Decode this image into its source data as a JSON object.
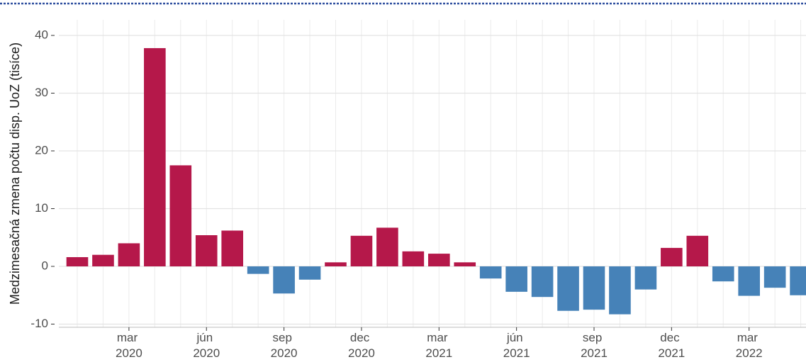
{
  "chart_data": {
    "type": "bar",
    "y_label": "Medzimesačná zmena počtu disp. UoZ (tisíce)",
    "categories": [
      null,
      null,
      "mar 2020",
      null,
      null,
      "jún 2020",
      null,
      null,
      "sep 2020",
      null,
      null,
      "dec 2020",
      null,
      null,
      "mar 2021",
      null,
      null,
      "jún 2021",
      null,
      null,
      "sep 2021",
      null,
      null,
      "dec 2021",
      null,
      null,
      "mar 2022",
      null,
      null
    ],
    "values": [
      1.6,
      2.0,
      4.0,
      37.8,
      17.5,
      5.4,
      6.2,
      -1.3,
      -4.7,
      -2.3,
      0.7,
      5.3,
      6.7,
      2.6,
      2.2,
      0.7,
      -2.1,
      -4.4,
      -5.3,
      -7.7,
      -7.5,
      -8.3,
      -4.0,
      3.2,
      5.3,
      -2.6,
      -5.1,
      -3.7,
      -5.0
    ],
    "positive_color": "#b5184a",
    "negative_color": "#4682b8",
    "ylim": [
      -10.55,
      42.7
    ],
    "yticks": [
      -10,
      0,
      10,
      20,
      30,
      40
    ],
    "grid": true
  }
}
